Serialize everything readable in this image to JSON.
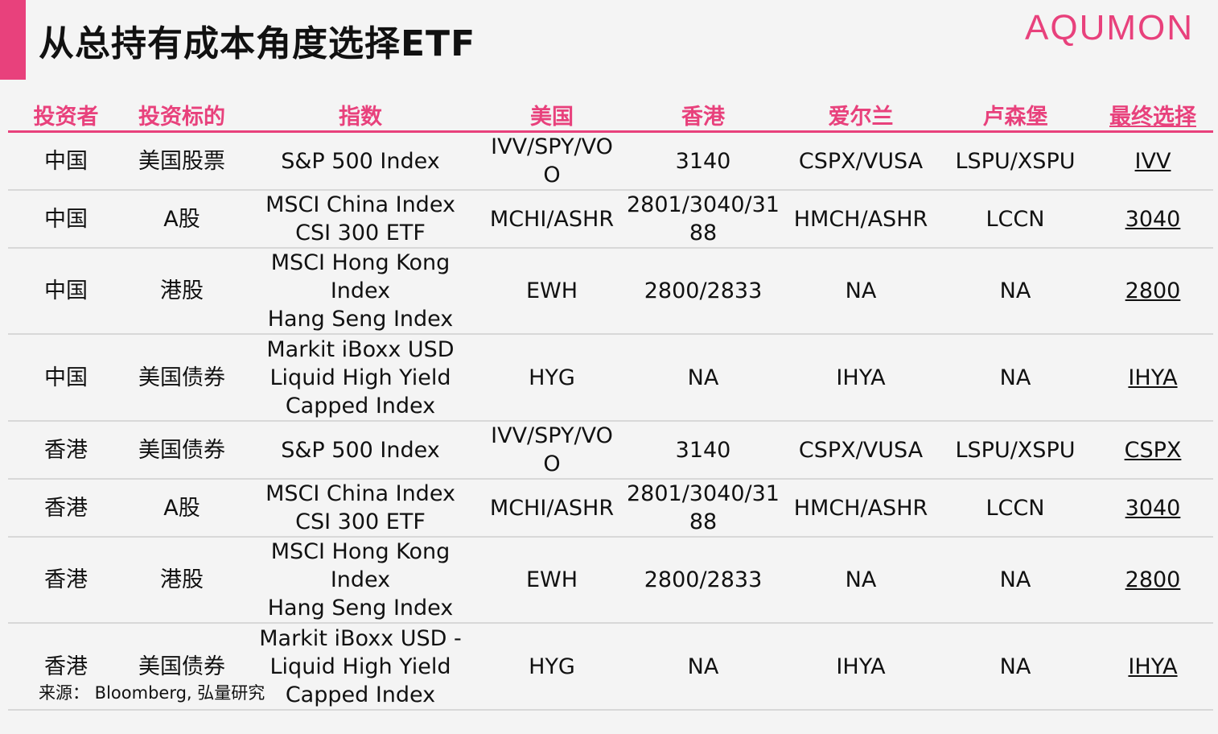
{
  "title": "从总持有成本角度选择ETF",
  "logo": "AQUMON",
  "colors": {
    "accent": "#e8417c",
    "row_divider": "#d8d8d8",
    "background": "#f4f4f4"
  },
  "headers": [
    "投资者",
    "投资标的",
    "指数",
    "美国",
    "香港",
    "爱尔兰",
    "卢森堡",
    "最终选择"
  ],
  "rows": [
    {
      "investor": "中国",
      "asset": "美国股票",
      "index": [
        "S&P 500 Index"
      ],
      "us": [
        "IVV/SPY/VO",
        "O"
      ],
      "hk": [
        "3140"
      ],
      "ie": "CSPX/VUSA",
      "lu": "LSPU/XSPU",
      "pick": "IVV"
    },
    {
      "investor": "中国",
      "asset": "A股",
      "index": [
        "MSCI China Index",
        "CSI 300 ETF"
      ],
      "us": [
        "MCHI/ASHR"
      ],
      "hk": [
        "2801/3040/31",
        "88"
      ],
      "ie": "HMCH/ASHR",
      "lu": "LCCN",
      "pick": "3040"
    },
    {
      "investor": "中国",
      "asset": "港股",
      "index": [
        "MSCI Hong Kong Index",
        "Hang Seng Index"
      ],
      "us": [
        "EWH"
      ],
      "hk": [
        "2800/2833"
      ],
      "ie": "NA",
      "lu": "NA",
      "pick": "2800"
    },
    {
      "investor": "中国",
      "asset": "美国债券",
      "index": [
        "Markit iBoxx USD",
        "Liquid High Yield",
        "Capped Index"
      ],
      "us": [
        "HYG"
      ],
      "hk": [
        "NA"
      ],
      "ie": "IHYA",
      "lu": "NA",
      "pick": "IHYA"
    },
    {
      "investor": "香港",
      "asset": "美国债券",
      "index": [
        "S&P 500 Index"
      ],
      "us": [
        "IVV/SPY/VO",
        "O"
      ],
      "hk": [
        "3140"
      ],
      "ie": "CSPX/VUSA",
      "lu": "LSPU/XSPU",
      "pick": "CSPX"
    },
    {
      "investor": "香港",
      "asset": "A股",
      "index": [
        "MSCI China Index",
        "CSI 300 ETF"
      ],
      "us": [
        "MCHI/ASHR"
      ],
      "hk": [
        "2801/3040/31",
        "88"
      ],
      "ie": "HMCH/ASHR",
      "lu": "LCCN",
      "pick": "3040"
    },
    {
      "investor": "香港",
      "asset": "港股",
      "index": [
        "MSCI Hong Kong Index",
        "Hang Seng Index"
      ],
      "us": [
        "EWH"
      ],
      "hk": [
        "2800/2833"
      ],
      "ie": "NA",
      "lu": "NA",
      "pick": "2800"
    },
    {
      "investor": "香港",
      "asset": "美国债券",
      "index": [
        "Markit iBoxx USD -",
        "Liquid High Yield",
        "Capped Index"
      ],
      "us": [
        "HYG"
      ],
      "hk": [
        "NA"
      ],
      "ie": "IHYA",
      "lu": "NA",
      "pick": "IHYA"
    }
  ],
  "source": "来源： Bloomberg, 弘量研究"
}
